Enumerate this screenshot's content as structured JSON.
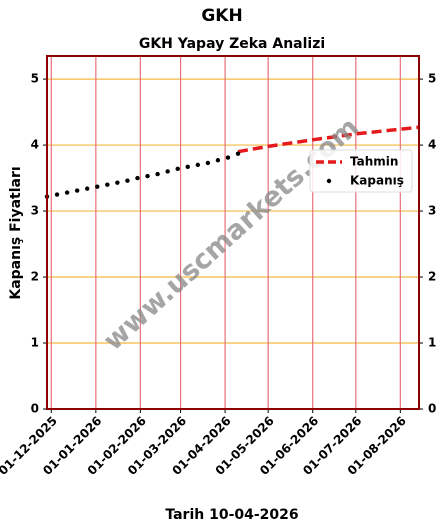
{
  "chart_data": {
    "type": "line",
    "title": "GKH",
    "subtitle": "GKH Yapay Zeka Analizi",
    "x_label": "Tarih 10-04-2026",
    "y_label": "Kapanış Fiyatları",
    "watermark": "www.uscmarkets.com",
    "xlim": [
      "2025-11-28",
      "2026-08-14"
    ],
    "xticks": [
      {
        "value": "2025-12-01",
        "label": "01-12-2025"
      },
      {
        "value": "2026-01-01",
        "label": "01-01-2026"
      },
      {
        "value": "2026-02-01",
        "label": "01-02-2026"
      },
      {
        "value": "2026-03-01",
        "label": "01-03-2026"
      },
      {
        "value": "2026-04-01",
        "label": "01-04-2026"
      },
      {
        "value": "2026-05-01",
        "label": "01-05-2026"
      },
      {
        "value": "2026-06-01",
        "label": "01-06-2026"
      },
      {
        "value": "2026-07-01",
        "label": "01-07-2026"
      },
      {
        "value": "2026-08-01",
        "label": "01-08-2026"
      }
    ],
    "ylim": [
      0,
      5.35
    ],
    "yticks": [
      0,
      1,
      2,
      3,
      4,
      5
    ],
    "grid": true,
    "legend": "upper right",
    "series": [
      {
        "name": "Tahmin",
        "kind": "line",
        "color": "#e41a1c",
        "x": [
          "2026-04-10",
          "2026-05-01",
          "2026-06-01",
          "2026-07-01",
          "2026-08-01",
          "2026-08-14"
        ],
        "values": [
          3.9,
          3.98,
          4.08,
          4.17,
          4.24,
          4.27
        ]
      },
      {
        "name": "Kapanış",
        "kind": "scatter",
        "color": "#000000",
        "x": [
          "2025-11-28",
          "2025-12-05",
          "2025-12-12",
          "2025-12-19",
          "2025-12-26",
          "2026-01-02",
          "2026-01-09",
          "2026-01-16",
          "2026-01-23",
          "2026-01-30",
          "2026-02-06",
          "2026-02-13",
          "2026-02-20",
          "2026-02-27",
          "2026-03-06",
          "2026-03-13",
          "2026-03-20",
          "2026-03-27",
          "2026-04-03",
          "2026-04-10"
        ],
        "values": [
          3.22,
          3.25,
          3.28,
          3.31,
          3.34,
          3.37,
          3.4,
          3.43,
          3.46,
          3.5,
          3.53,
          3.56,
          3.6,
          3.64,
          3.67,
          3.7,
          3.73,
          3.77,
          3.81,
          3.87
        ]
      }
    ]
  }
}
